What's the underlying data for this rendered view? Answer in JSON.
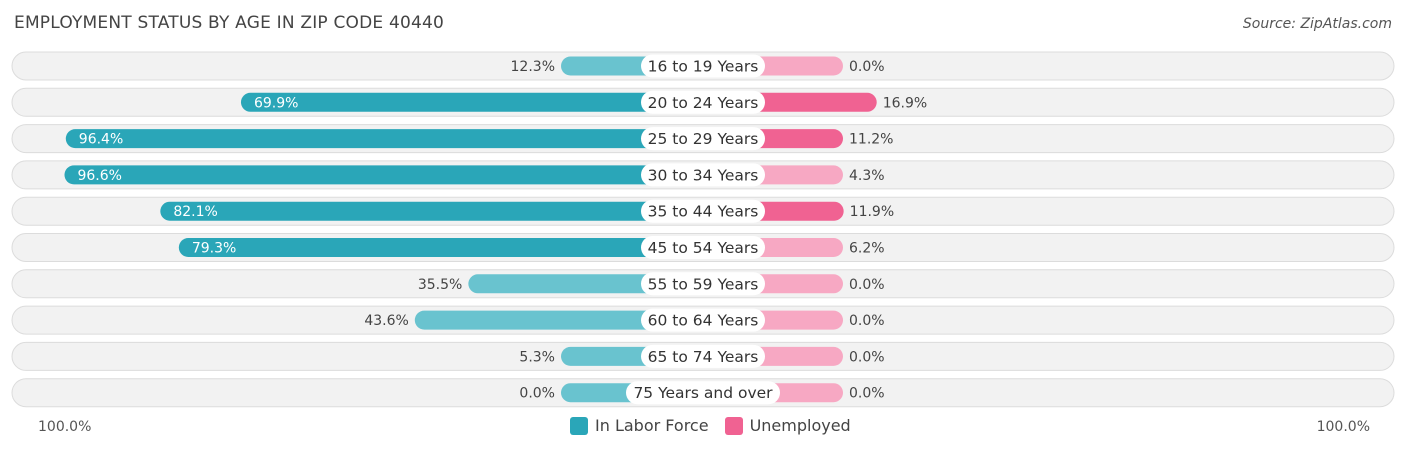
{
  "chart_data": {
    "type": "bar",
    "orientation": "diverging-horizontal",
    "title": "EMPLOYMENT STATUS BY AGE IN ZIP CODE 40440",
    "source": "Source: ZipAtlas.com",
    "categories": [
      "16 to 19 Years",
      "20 to 24 Years",
      "25 to 29 Years",
      "30 to 34 Years",
      "35 to 44 Years",
      "45 to 54 Years",
      "55 to 59 Years",
      "60 to 64 Years",
      "65 to 74 Years",
      "75 Years and over"
    ],
    "series": [
      {
        "name": "In Labor Force",
        "side": "left",
        "color": "#2aa6b8",
        "color_light": "#69c3cf",
        "values": [
          12.3,
          69.9,
          96.4,
          96.6,
          82.1,
          79.3,
          35.5,
          43.6,
          5.3,
          0.0
        ],
        "labels": [
          "12.3%",
          "69.9%",
          "96.4%",
          "96.6%",
          "82.1%",
          "79.3%",
          "35.5%",
          "43.6%",
          "5.3%",
          "0.0%"
        ]
      },
      {
        "name": "Unemployed",
        "side": "right",
        "color": "#f06292",
        "color_light": "#f7a8c3",
        "values": [
          0.0,
          16.9,
          11.2,
          4.3,
          11.9,
          6.2,
          0.0,
          0.0,
          0.0,
          0.0
        ],
        "labels": [
          "0.0%",
          "16.9%",
          "11.2%",
          "4.3%",
          "11.9%",
          "6.2%",
          "0.0%",
          "0.0%",
          "0.0%",
          "0.0%"
        ]
      }
    ],
    "xlim": [
      -100,
      100
    ],
    "axis_left_label": "100.0%",
    "axis_right_label": "100.0%",
    "legend_position": "bottom-center"
  }
}
